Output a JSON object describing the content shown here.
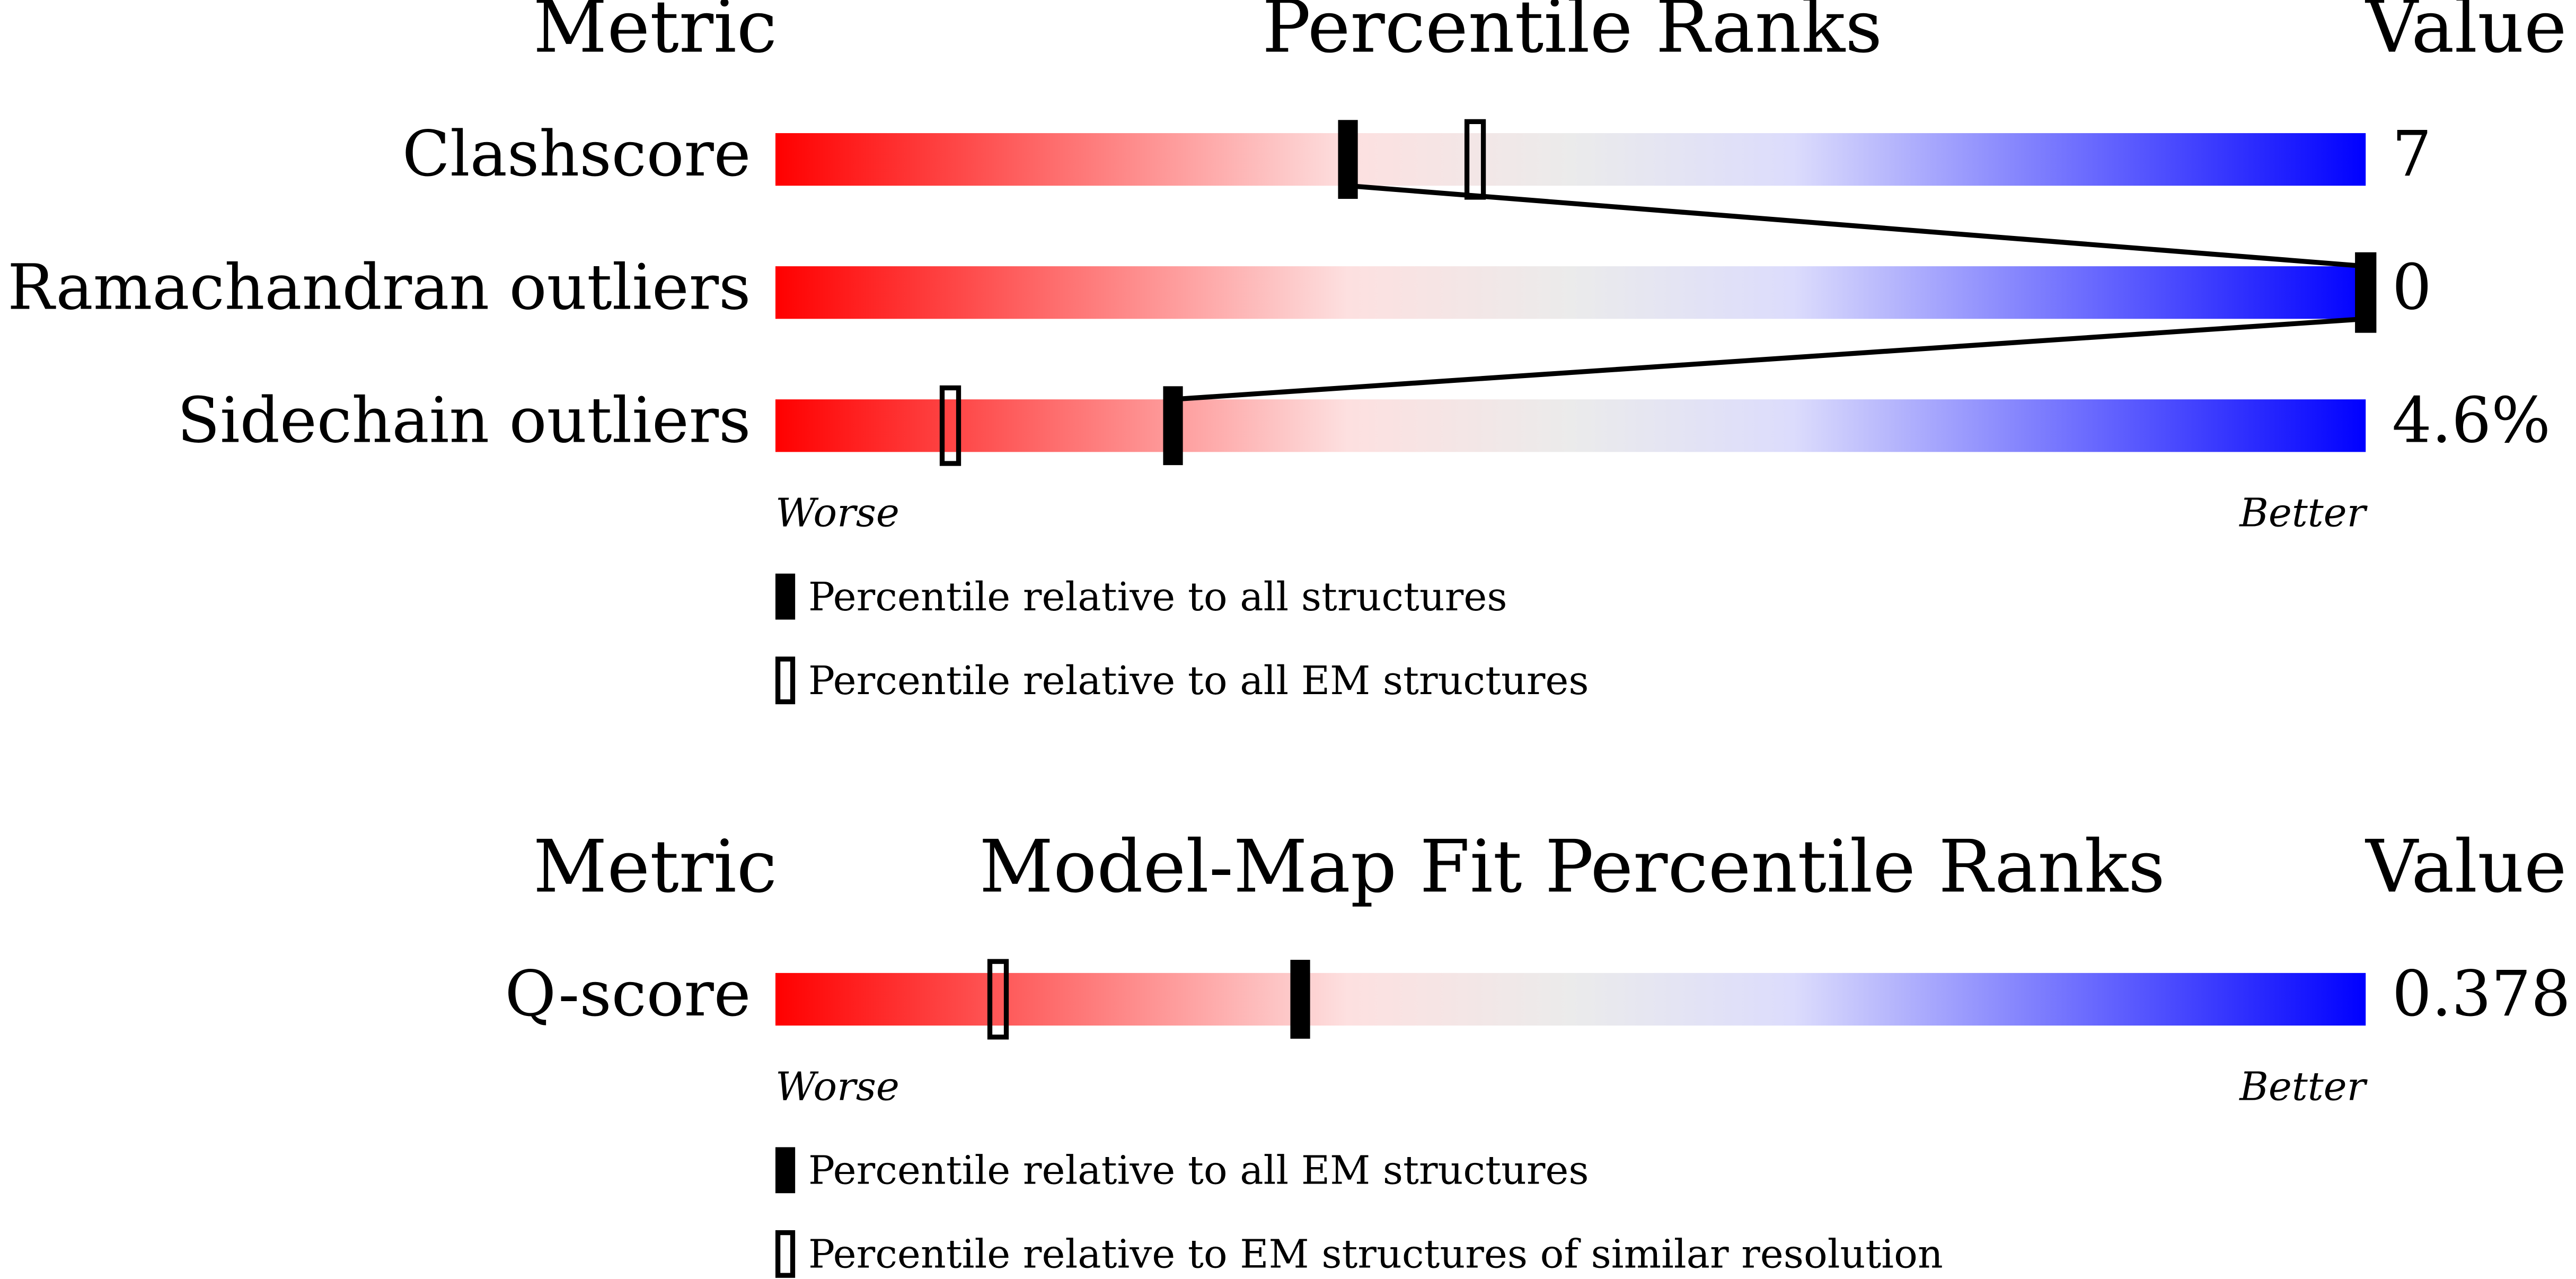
{
  "panels": [
    {
      "header": {
        "metric": "Metric",
        "title": "Percentile Ranks",
        "value": "Value"
      },
      "xlim": [
        0,
        100
      ],
      "rows": [
        {
          "metric": "Clashscore",
          "value": "7",
          "percentile_all": 36,
          "percentile_em": 44
        },
        {
          "metric": "Ramachandran outliers",
          "value": "0",
          "percentile_all": 100,
          "percentile_em": 100
        },
        {
          "metric": "Sidechain outliers",
          "value": "4.6%",
          "percentile_all": 25,
          "percentile_em": 11
        }
      ],
      "axis": {
        "worse": "Worse",
        "better": "Better"
      },
      "legend": {
        "filled": "Percentile relative to all structures",
        "open": "Percentile relative to all EM structures"
      }
    },
    {
      "header": {
        "metric": "Metric",
        "title": "Model-Map Fit Percentile Ranks",
        "value": "Value"
      },
      "xlim": [
        0,
        100
      ],
      "rows": [
        {
          "metric": "Q-score",
          "value": "0.378",
          "percentile_all": 33,
          "percentile_em": 14
        }
      ],
      "axis": {
        "worse": "Worse",
        "better": "Better"
      },
      "legend": {
        "filled": "Percentile relative to all EM structures",
        "open": "Percentile relative to EM structures of similar resolution"
      }
    }
  ]
}
